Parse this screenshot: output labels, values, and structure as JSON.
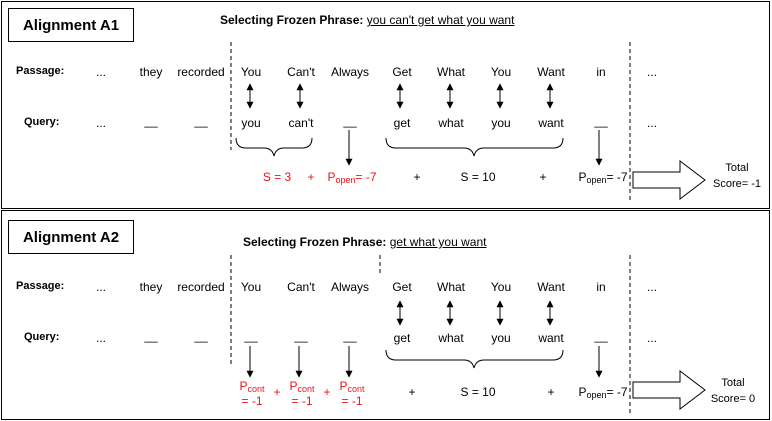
{
  "alignments": [
    {
      "title": "Alignment A1",
      "heading_label": "Selecting Frozen Phrase:",
      "heading_phrase": "you can't get what you want",
      "passage_label": "Passage:",
      "query_label": "Query:",
      "passage": [
        "...",
        "they",
        "recorded",
        "You",
        "Can't",
        "Always",
        "Get",
        "What",
        "You",
        "Want",
        "in",
        "..."
      ],
      "query": [
        "...",
        "__",
        "__",
        "you",
        "can't",
        "__",
        "get",
        "what",
        "you",
        "want",
        "__",
        "..."
      ],
      "score_terms": {
        "s1": "S = 3",
        "plus1": "+",
        "p1_base": "P",
        "p1_sub": "open",
        "p1_val": "= -7",
        "plus2": "+",
        "s2": "S = 10",
        "plus3": "+",
        "p2_base": "P",
        "p2_sub": "open",
        "p2_val": "= -7"
      },
      "total_line1": "Total",
      "total_line2": "Score= -1"
    },
    {
      "title": "Alignment A2",
      "heading_label": "Selecting Frozen Phrase:",
      "heading_phrase": "get what you want",
      "passage_label": "Passage:",
      "query_label": "Query:",
      "passage": [
        "...",
        "they",
        "recorded",
        "You",
        "Can't",
        "Always",
        "Get",
        "What",
        "You",
        "Want",
        "in",
        "..."
      ],
      "query": [
        "...",
        "__",
        "__",
        "__",
        "__",
        "__",
        "get",
        "what",
        "you",
        "want",
        "__",
        "..."
      ],
      "score_terms": {
        "c_base": "P",
        "c_sub": "cont",
        "c_val": "= -1",
        "plus1": "+",
        "plus2": "+",
        "plus3": "+",
        "s": "S = 10",
        "plus4": "+",
        "p_base": "P",
        "p_sub": "open",
        "p_val": "= -7"
      },
      "total_line1": "Total",
      "total_line2": "Score= 0"
    }
  ]
}
